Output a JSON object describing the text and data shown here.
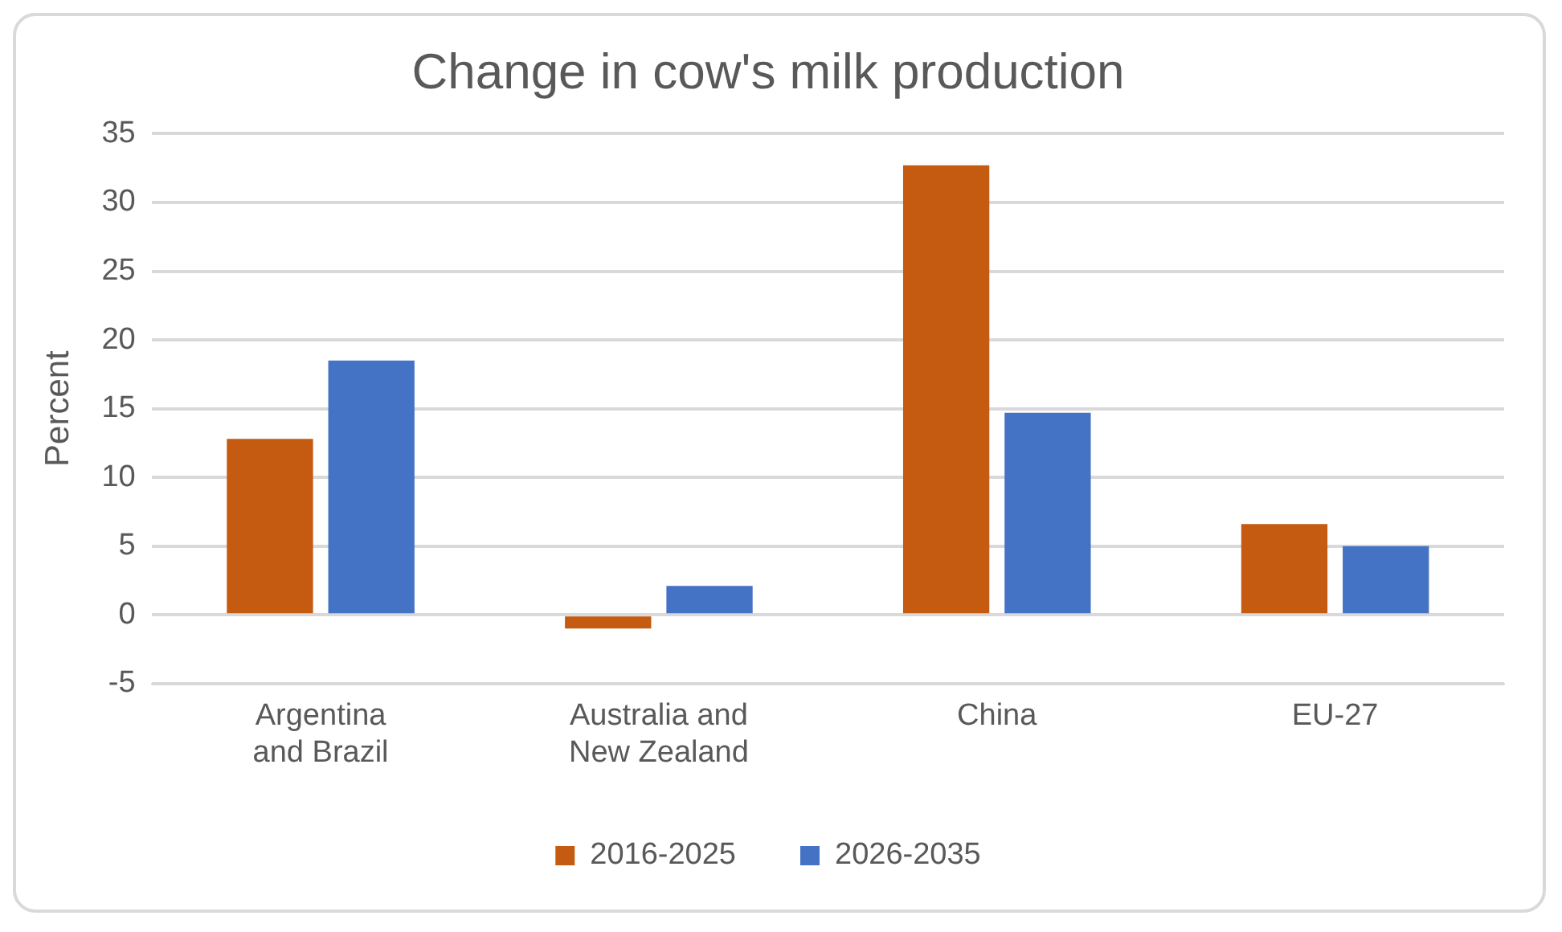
{
  "chart_data": {
    "type": "bar",
    "title": "Change in cow's milk production",
    "ylabel": "Percent",
    "categories": [
      "Argentina and Brazil",
      "Australia and New Zealand",
      "China",
      "EU-27"
    ],
    "series": [
      {
        "name": "2016-2025",
        "color": "#c55a11",
        "values": [
          12.8,
          -1.0,
          32.7,
          6.6
        ]
      },
      {
        "name": "2026-2035",
        "color": "#4472c4",
        "values": [
          18.5,
          2.1,
          14.7,
          5.0
        ]
      }
    ],
    "ylim": [
      -5,
      35
    ],
    "yticks": [
      -5,
      0,
      5,
      10,
      15,
      20,
      25,
      30,
      35
    ],
    "grid": "y",
    "legend": "bottom"
  }
}
